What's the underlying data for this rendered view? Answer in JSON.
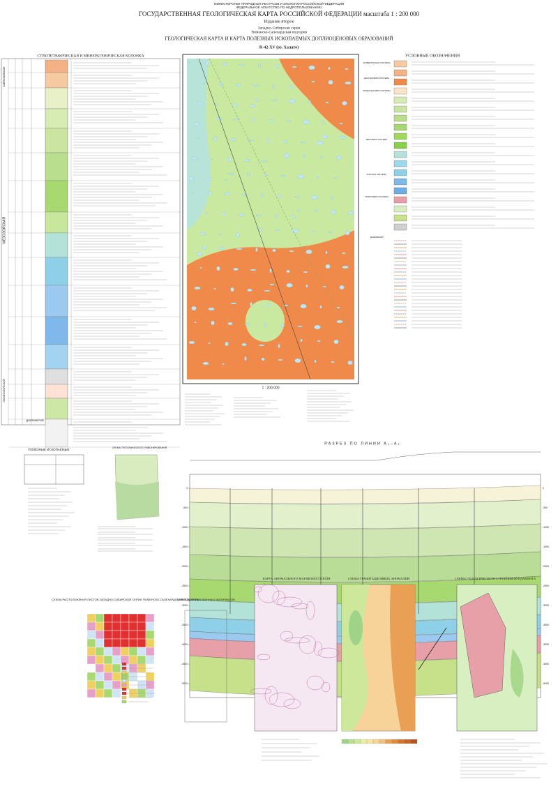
{
  "header": {
    "ministry": "МИНИСТЕРСТВО ПРИРОДНЫХ РЕСУРСОВ И ЭКОЛОГИИ РОССИЙСКОЙ ФЕДЕРАЦИИ",
    "agency": "ФЕДЕРАЛЬНОЕ АГЕНТСТВО ПО НЕДРОПОЛЬЗОВАНИЮ",
    "title": "ГОСУДАРСТВЕННАЯ ГЕОЛОГИЧЕСКАЯ КАРТА РОССИЙСКОЙ ФЕДЕРАЦИИ масштаба 1 : 200 000",
    "edition": "Издание второе",
    "series": "Западно-Сибирская серия",
    "subseries": "Тюменско-Салехардская подсерия",
    "map_title": "ГЕОЛОГИЧЕСКАЯ КАРТА И КАРТА ПОЛЕЗНЫХ ИСКОПАЕМЫХ ДОПЛИОЦЕНОВЫХ ОБРАЗОВАНИЙ",
    "sheet": "R-42-XV (оз. Халато)"
  },
  "column": {
    "title": "СТРАТИГРАФИЧЕСКАЯ И МИНЕРАГЕНИЧЕСКАЯ КОЛОНКА",
    "eras": [
      "КАЙНОЗОЙСКАЯ",
      "МЕЗОЗОЙСКАЯ",
      "ПАЛЕОЗОЙСКАЯ",
      "ДОКЕМБРИЙ"
    ]
  },
  "legend": {
    "title": "УСЛОВНЫЕ ОБОЗНАЧЕНИЯ",
    "systems": [
      "ЧЕТВЕРТИЧНАЯ СИСТЕМА",
      "НЕОГЕНОВАЯ СИСТЕМА",
      "ПАЛЕОГЕНОВАЯ СИСТЕМА",
      "МЕЛОВАЯ СИСТЕМА",
      "ЮРСКАЯ СИСТЕМА",
      "ТРИАСОВАЯ СИСТЕМА",
      "ДОКЕМБРИЙ"
    ]
  },
  "map": {
    "scale": "1 : 200 000"
  },
  "section": {
    "title": "РАЗРЕЗ ПО ЛИНИИ А₁–А₂",
    "field": "БОВАНЕНКОВСКОЕ МЕСТОРОЖДЕНИЕ",
    "depths": [
      "0",
      "-500",
      "-1000",
      "-1500",
      "-2000",
      "-2500",
      "-3000",
      "-3500",
      "-4000",
      "-4500",
      "-5000"
    ]
  },
  "minerals": {
    "title": "ПОЛЕЗНЫЕ ИСКОПАЕМЫЕ"
  },
  "insets": {
    "tectonic": "СХЕМА ТЕКТОНИЧЕСКОГО РАЙОНИРОВАНИЯ",
    "sheets": "СХЕМА РАСПОЛОЖЕНИЯ ЛИСТОВ ЗАПАДНО-СИБИРСКОЙ СЕРИИ ТЮМЕНСКО-САЛЕХАРДСКОЙ ПОДСЕРИИ",
    "materials": "СХЕМА ИСПОЛЬЗОВАННЫХ МАТЕРИАЛОВ",
    "magnetic": "КАРТА АНОМАЛЬНОГО МАГНИТНОГО ПОЛЯ",
    "gravity": "СХЕМА ГРАВИТАЦИОННЫХ АНОМАЛИЙ",
    "basement": "СХЕМА ГЕОЛОГИЧЕСКОГО СТРОЕНИЯ ФУНДАМЕНТА"
  }
}
